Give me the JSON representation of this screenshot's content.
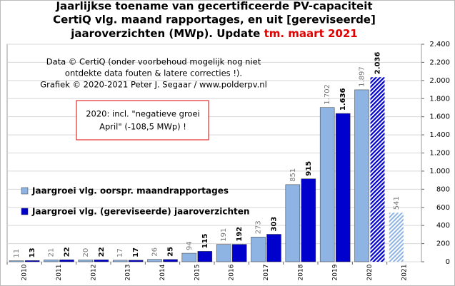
{
  "chart_data": {
    "type": "bar",
    "title": [
      "Jaarlijkse  toename van gecertificeerde PV-capaciteit",
      "CertiQ vlg. maand rapportages, en uit [gereviseerde]",
      "jaaroverzichten (MWp). Update "
    ],
    "title_highlight": "tm. maart 2021",
    "title_highlight_color": "#e00000",
    "annotations": [
      "Data © CertiQ (onder voorbehoud mogelijk  nog niet",
      "ontdekte data fouten & latere correcties !).",
      "Grafiek  © 2020-2021 Peter J. Segaar / www.polderpv.nl"
    ],
    "note": [
      "2020:  incl. \"negatieve groei",
      "April\"  (-108,5 MWp) !"
    ],
    "note_color": "#e00000",
    "categories": [
      "2010",
      "2011",
      "2012",
      "2013",
      "2014",
      "2015",
      "2016",
      "2017",
      "2018",
      "2019",
      "2020",
      "2021"
    ],
    "series": [
      {
        "name": "Jaargroei vlg. oorspr. maandrapportages",
        "color": "#8eb4e3",
        "values": [
          11,
          21,
          20,
          17,
          26,
          94,
          191,
          273,
          851,
          1702,
          1897,
          541
        ],
        "value_labels": [
          "11",
          "21",
          "20",
          "17",
          "26",
          "94",
          "191",
          "273",
          "851",
          "1.702",
          "1.897",
          "541"
        ],
        "hatched": [
          false,
          false,
          false,
          false,
          false,
          false,
          false,
          false,
          false,
          false,
          false,
          true
        ]
      },
      {
        "name": "Jaargroei vlg. (gereviseerde) jaaroverzichten",
        "color": "#0000cc",
        "values": [
          13,
          22,
          22,
          17,
          25,
          115,
          192,
          303,
          915,
          1636,
          2036,
          null
        ],
        "value_labels": [
          "13",
          "22",
          "22",
          "17",
          "25",
          "115",
          "192",
          "303",
          "915",
          "1.636",
          "2.036",
          null
        ],
        "hatched": [
          false,
          false,
          false,
          false,
          false,
          false,
          false,
          false,
          false,
          false,
          true,
          false
        ]
      }
    ],
    "ylim": [
      0,
      2400
    ],
    "yticks": [
      0,
      200,
      400,
      600,
      800,
      {
        "value": 1000,
        "label": "1.000"
      },
      {
        "value": 1200,
        "label": "1.200"
      },
      {
        "value": 1400,
        "label": "1.400"
      },
      {
        "value": 1600,
        "label": "1.600"
      },
      {
        "value": 1800,
        "label": "1.800"
      },
      {
        "value": 2000,
        "label": "2.000"
      },
      {
        "value": 2200,
        "label": "2.200"
      },
      {
        "value": 2400,
        "label": "2.400"
      }
    ],
    "grid": true
  }
}
